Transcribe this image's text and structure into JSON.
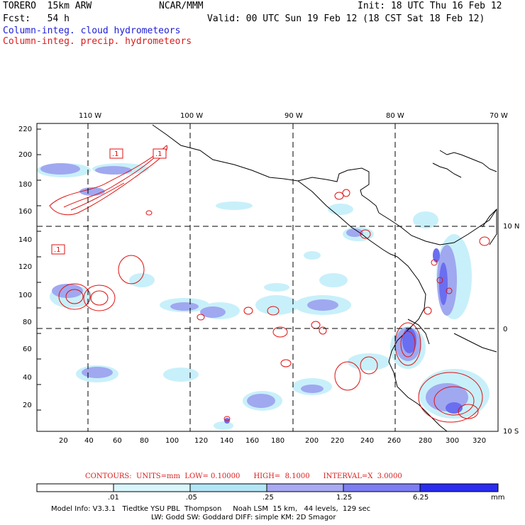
{
  "header": {
    "line1_left": "TORERO  15km ARW",
    "line1_mid": "NCAR/MMM",
    "line1_right": "Init: 18 UTC Thu 16 Feb 12",
    "line2_left": "Fcst:   54 h",
    "line2_right": "Valid: 00 UTC Sun 19 Feb 12 (18 CST Sat 18 Feb 12)",
    "legend_cloud": "Column-integ. cloud hydrometeors",
    "legend_precip": "Column-integ. precip. hydrometeors"
  },
  "map": {
    "top_lon_labels": [
      "110 W",
      "100 W",
      "90 W",
      "80 W",
      "70 W"
    ],
    "right_lat_labels": [
      "10 N",
      "0",
      "10 S"
    ],
    "y_ticks": [
      "220",
      "200",
      "180",
      "160",
      "140",
      "120",
      "100",
      "80",
      "60",
      "40",
      "20"
    ],
    "x_ticks": [
      "20",
      "40",
      "60",
      "80",
      "100",
      "120",
      "140",
      "160",
      "180",
      "200",
      "220",
      "240",
      "260",
      "280",
      "300",
      "320"
    ],
    "contour_labels": [
      ".1",
      ".1",
      ".1"
    ],
    "colors": {
      "cloud_light": "#c8f0fa",
      "cloud_mid": "#a0a8f0",
      "cloud_strong": "#6a6ef0",
      "precip_contour": "#e01010",
      "coast": "#000000"
    }
  },
  "contour_info": {
    "text": "CONTOURS:  UNITS=mm  LOW= 0.10000      HIGH=  8.1000      INTERVAL=X  3.0000"
  },
  "colorbar": {
    "labels": [
      ".01",
      ".05",
      ".25",
      "1.25",
      "6.25"
    ],
    "unit": "mm",
    "colors": [
      "#ffffff",
      "#d8f6fc",
      "#b2e6f6",
      "#a8aaf2",
      "#7c7ef2",
      "#5052f0",
      "#2a2cf0"
    ]
  },
  "footer": {
    "line1": "Model Info: V3.3.1   Tiedtke YSU PBL  Thompson     Noah LSM  15 km,   44 levels,  129 sec",
    "line2": "LW: Godd SW: Goddard DIFF: simple KM: 2D Smagor"
  }
}
